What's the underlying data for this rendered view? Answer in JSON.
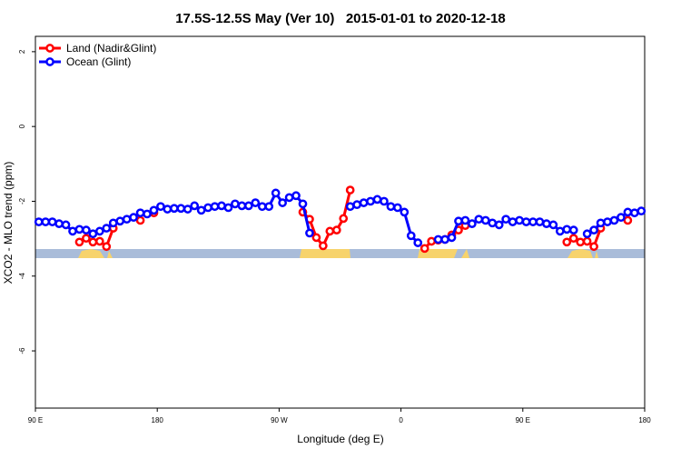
{
  "chart_data": {
    "type": "line",
    "title": "17.5S-12.5S May (Ver 10)   2015-01-01 to 2020-12-18",
    "x_label": "Longitude (deg E)",
    "y_label": "XCO2 - MLO trend (ppm)",
    "legend": "top-left",
    "xlim": [
      90,
      540
    ],
    "xticks": [
      {
        "value": 90,
        "label": "90 E"
      },
      {
        "value": 180,
        "label": "180"
      },
      {
        "value": 270,
        "label": "90 W"
      },
      {
        "value": 360,
        "label": "0"
      },
      {
        "value": 450,
        "label": "90 E"
      },
      {
        "value": 540,
        "label": "180"
      }
    ],
    "ylim": [
      -7.53,
      2.41
    ],
    "yticks": [
      -6,
      -4,
      -2,
      0,
      2
    ],
    "x": [
      92.5,
      97.5,
      102.5,
      107.5,
      112.5,
      117.5,
      122.5,
      127.5,
      132.5,
      137.5,
      142.5,
      147.5,
      152.5,
      157.5,
      162.5,
      167.5,
      172.5,
      177.5,
      182.5,
      187.5,
      192.5,
      197.5,
      202.5,
      207.5,
      212.5,
      217.5,
      222.5,
      227.5,
      232.5,
      237.5,
      242.5,
      247.5,
      252.5,
      257.5,
      262.5,
      267.5,
      272.5,
      277.5,
      282.5,
      287.5,
      292.5,
      297.5,
      302.5,
      307.5,
      312.5,
      317.5,
      322.5,
      327.5,
      332.5,
      337.5,
      342.5,
      347.5,
      352.5,
      357.5,
      362.5,
      367.5,
      372.5,
      377.5,
      382.5,
      387.5,
      392.5,
      397.5,
      402.5,
      407.5,
      412.5,
      417.5,
      422.5,
      427.5,
      432.5,
      437.5,
      442.5,
      447.5,
      452.5,
      457.5,
      462.5,
      467.5,
      472.5,
      477.5,
      482.5,
      487.5,
      492.5,
      497.5,
      502.5,
      507.5,
      512.5,
      517.5,
      522.5,
      527.5,
      532.5,
      537.5
    ],
    "series": [
      {
        "name": "Land (Nadir&Glint)",
        "color": "#ff0000",
        "values": [
          null,
          null,
          null,
          null,
          null,
          null,
          -3.09,
          -2.99,
          -3.09,
          -3.07,
          -3.21,
          -2.72,
          null,
          null,
          null,
          -2.51,
          null,
          -2.31,
          null,
          null,
          null,
          null,
          null,
          null,
          null,
          null,
          null,
          null,
          null,
          null,
          null,
          null,
          null,
          null,
          null,
          null,
          null,
          null,
          null,
          -2.29,
          -2.48,
          -2.97,
          -3.19,
          -2.8,
          -2.77,
          -2.46,
          -1.7,
          null,
          null,
          null,
          null,
          null,
          null,
          null,
          null,
          null,
          null,
          -3.26,
          -3.07,
          -3.04,
          -3.02,
          -2.9,
          -2.77,
          -2.65,
          null,
          null,
          null,
          null,
          null,
          null,
          null,
          null,
          null,
          null,
          null,
          null,
          null,
          null,
          -3.09,
          -2.99,
          -3.09,
          -3.07,
          -3.21,
          -2.72,
          null,
          null,
          null,
          -2.51,
          null,
          null
        ]
      },
      {
        "name": "Ocean (Glint)",
        "color": "#0000ff",
        "values": [
          -2.55,
          -2.55,
          -2.55,
          -2.6,
          -2.63,
          -2.8,
          -2.75,
          -2.77,
          -2.87,
          -2.8,
          -2.72,
          -2.58,
          -2.53,
          -2.48,
          -2.43,
          -2.31,
          -2.34,
          -2.24,
          -2.14,
          -2.21,
          -2.19,
          -2.19,
          -2.21,
          -2.12,
          -2.24,
          -2.17,
          -2.14,
          -2.12,
          -2.17,
          -2.07,
          -2.12,
          -2.12,
          -2.04,
          -2.14,
          -2.14,
          -1.78,
          -2.04,
          -1.9,
          -1.85,
          -2.07,
          -2.85,
          null,
          null,
          null,
          null,
          null,
          -2.14,
          -2.09,
          -2.04,
          -2.0,
          -1.95,
          -2.0,
          -2.14,
          -2.17,
          -2.29,
          -2.92,
          -3.11,
          null,
          null,
          -3.02,
          -3.02,
          -2.97,
          -2.53,
          -2.51,
          -2.6,
          -2.48,
          -2.51,
          -2.58,
          -2.63,
          -2.48,
          -2.55,
          -2.51,
          -2.55,
          -2.55,
          -2.55,
          -2.6,
          -2.63,
          -2.8,
          -2.75,
          -2.77,
          null,
          -2.87,
          -2.77,
          -2.58,
          -2.55,
          -2.51,
          -2.43,
          -2.29,
          -2.31,
          -2.26
        ]
      }
    ]
  }
}
